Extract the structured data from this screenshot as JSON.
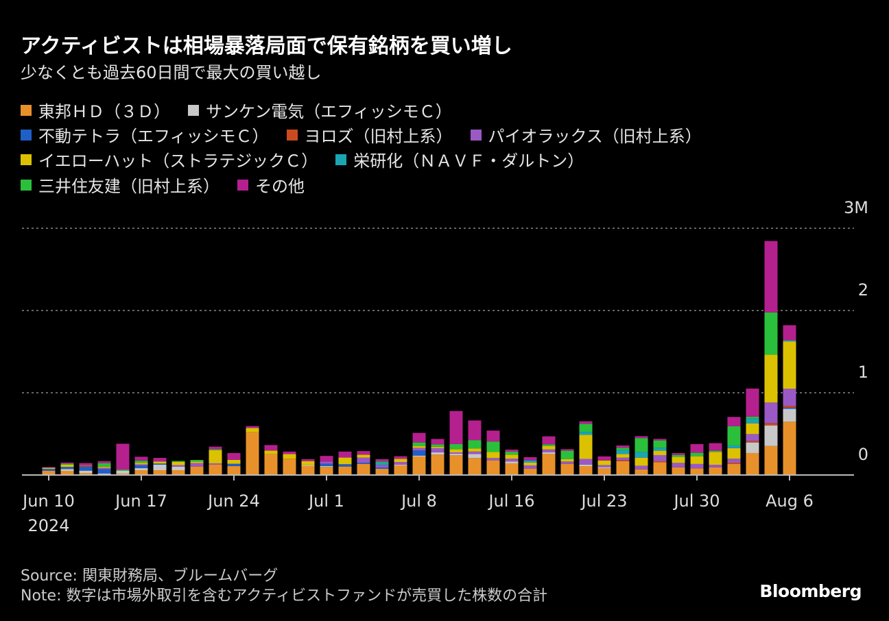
{
  "chart_data": {
    "type": "bar",
    "stacked": true,
    "title": "アクティビストは相場暴落局面で保有銘柄を買い増し",
    "subtitle": "少なくとも過去60日間で最大の買い越し",
    "ylim": [
      0,
      3
    ],
    "y_ticks": [
      {
        "value": 0,
        "label": "0"
      },
      {
        "value": 1,
        "label": "1"
      },
      {
        "value": 2,
        "label": "2"
      },
      {
        "value": 3,
        "label": "3M"
      }
    ],
    "grid": "horizontal dotted",
    "legend_position": "top",
    "x": [
      "2024-06-10",
      "2024-06-11",
      "2024-06-12",
      "2024-06-13",
      "2024-06-14",
      "2024-06-17",
      "2024-06-18",
      "2024-06-19",
      "2024-06-20",
      "2024-06-21",
      "2024-06-24",
      "2024-06-25",
      "2024-06-26",
      "2024-06-27",
      "2024-06-28",
      "2024-07-01",
      "2024-07-02",
      "2024-07-03",
      "2024-07-04",
      "2024-07-05",
      "2024-07-08",
      "2024-07-09",
      "2024-07-10",
      "2024-07-11",
      "2024-07-12",
      "2024-07-16",
      "2024-07-17",
      "2024-07-18",
      "2024-07-19",
      "2024-07-22",
      "2024-07-23",
      "2024-07-24",
      "2024-07-25",
      "2024-07-26",
      "2024-07-29",
      "2024-07-30",
      "2024-07-31",
      "2024-08-01",
      "2024-08-02",
      "2024-08-05",
      "2024-08-06"
    ],
    "x_ticks": [
      {
        "index": 0,
        "label": "Jun 10",
        "sub": "2024"
      },
      {
        "index": 5,
        "label": "Jun 17"
      },
      {
        "index": 10,
        "label": "Jun 24"
      },
      {
        "index": 15,
        "label": "Jul 1"
      },
      {
        "index": 20,
        "label": "Jul 8"
      },
      {
        "index": 25,
        "label": "Jul 16"
      },
      {
        "index": 30,
        "label": "Jul 23"
      },
      {
        "index": 35,
        "label": "Jul 30"
      },
      {
        "index": 40,
        "label": "Aug 6"
      }
    ],
    "series": [
      {
        "name": "東邦ＨＤ（３Ｄ）",
        "color": "#e8912b",
        "values": [
          0.05,
          0.05,
          0.025,
          0,
          0.017,
          0.058,
          0.058,
          0.058,
          0.103,
          0.128,
          0.108,
          0.519,
          0.253,
          0.198,
          0.108,
          0.098,
          0.103,
          0.136,
          0.075,
          0.117,
          0.225,
          0.248,
          0.239,
          0.206,
          0.178,
          0.142,
          0.078,
          0.258,
          0.136,
          0.108,
          0.081,
          0.169,
          0.069,
          0.156,
          0.094,
          0.081,
          0.094,
          0.136,
          0.267,
          0.353,
          0.648
        ]
      },
      {
        "name": "サンケン電気（エフィッシモＣ）",
        "color": "#c8c8c8",
        "values": [
          0,
          0.023,
          0.028,
          0.019,
          0.036,
          0.025,
          0.067,
          0.044,
          0,
          0,
          0,
          0,
          0,
          0,
          0.011,
          0.011,
          0,
          0,
          0,
          0.008,
          0.011,
          0.028,
          0.019,
          0.048,
          0,
          0.023,
          0,
          0.017,
          0,
          0.019,
          0.014,
          0,
          0,
          0,
          0,
          0,
          0,
          0,
          0.128,
          0.25,
          0.156
        ]
      },
      {
        "name": "不動テトラ（エフィッシモＣ）",
        "color": "#1f5fc8",
        "values": [
          0.025,
          0.025,
          0.048,
          0.05,
          0,
          0.033,
          0.014,
          0,
          0,
          0,
          0.028,
          0,
          0,
          0,
          0,
          0.028,
          0.028,
          0.014,
          0.017,
          0,
          0.061,
          0,
          0,
          0,
          0,
          0,
          0,
          0,
          0,
          0,
          0,
          0,
          0,
          0,
          0,
          0,
          0,
          0,
          0,
          0,
          0.014
        ]
      },
      {
        "name": "ヨロズ（旧村上系）",
        "color": "#c84b20",
        "values": [
          0,
          0,
          0.017,
          0,
          0,
          0,
          0,
          0,
          0,
          0,
          0,
          0,
          0,
          0,
          0,
          0,
          0,
          0,
          0,
          0,
          0,
          0,
          0,
          0,
          0,
          0,
          0,
          0,
          0,
          0,
          0,
          0.011,
          0,
          0.011,
          0,
          0,
          0,
          0.014,
          0.019,
          0.028,
          0.023
        ]
      },
      {
        "name": "パイオラックス（旧村上系）",
        "color": "#9b59c6",
        "values": [
          0,
          0,
          0.008,
          0.019,
          0,
          0.014,
          0,
          0.019,
          0.042,
          0.014,
          0,
          0,
          0,
          0,
          0,
          0.028,
          0,
          0.061,
          0.031,
          0.033,
          0.033,
          0.05,
          0.017,
          0.031,
          0.028,
          0.033,
          0.039,
          0.036,
          0.028,
          0.069,
          0.025,
          0.031,
          0.044,
          0.075,
          0.053,
          0.053,
          0.031,
          0.048,
          0.083,
          0.25,
          0.208
        ]
      },
      {
        "name": "イエローハット（ストラテジックＣ）",
        "color": "#dcc100",
        "values": [
          0.013,
          0.028,
          0,
          0.014,
          0,
          0.019,
          0.025,
          0.039,
          0.019,
          0.161,
          0.048,
          0.053,
          0.044,
          0.056,
          0.05,
          0,
          0.081,
          0.036,
          0,
          0.039,
          0.023,
          0.017,
          0.039,
          0.036,
          0.073,
          0.05,
          0.033,
          0.042,
          0.028,
          0.292,
          0.056,
          0.044,
          0.098,
          0.053,
          0.073,
          0.094,
          0.156,
          0.128,
          0.131,
          0.581,
          0.575
        ]
      },
      {
        "name": "栄研化（ＮＡＶＦ・ダルトン）",
        "color": "#1aa5b5",
        "values": [
          0,
          0,
          0,
          0,
          0,
          0,
          0,
          0,
          0,
          0,
          0,
          0,
          0,
          0,
          0,
          0,
          0,
          0,
          0.028,
          0,
          0,
          0,
          0,
          0,
          0,
          0,
          0.028,
          0,
          0,
          0.036,
          0,
          0.048,
          0.069,
          0.036,
          0,
          0,
          0,
          0.033,
          0.058,
          0,
          0.014
        ]
      },
      {
        "name": "三井住友建（旧村上系）",
        "color": "#2bc03c",
        "values": [
          0,
          0.011,
          0,
          0.042,
          0.013,
          0.025,
          0,
          0.011,
          0.019,
          0.011,
          0,
          0,
          0,
          0,
          0,
          0,
          0,
          0,
          0.014,
          0,
          0.042,
          0.028,
          0.061,
          0.103,
          0.128,
          0.036,
          0,
          0.019,
          0.103,
          0.098,
          0,
          0.028,
          0.169,
          0.089,
          0.023,
          0.042,
          0.014,
          0.233,
          0.023,
          0.514,
          0
        ]
      },
      {
        "name": "その他",
        "color": "#b5208f",
        "values": [
          0.008,
          0.014,
          0.019,
          0.025,
          0.314,
          0.048,
          0.044,
          0,
          0,
          0.031,
          0.083,
          0.023,
          0.067,
          0.031,
          0.023,
          0.067,
          0.073,
          0.044,
          0.028,
          0.031,
          0.117,
          0.067,
          0.403,
          0.239,
          0.133,
          0.025,
          0.039,
          0.098,
          0.019,
          0.031,
          0.05,
          0.028,
          0.023,
          0.019,
          0.023,
          0.106,
          0.092,
          0.114,
          0.342,
          0.869,
          0.183
        ]
      }
    ]
  },
  "footer": {
    "source": "Source: 関東財務局、ブルームバーグ",
    "note": "Note: 数字は市場外取引を含むアクティビストファンドが売買した株数の合計",
    "logo": "Bloomberg"
  }
}
